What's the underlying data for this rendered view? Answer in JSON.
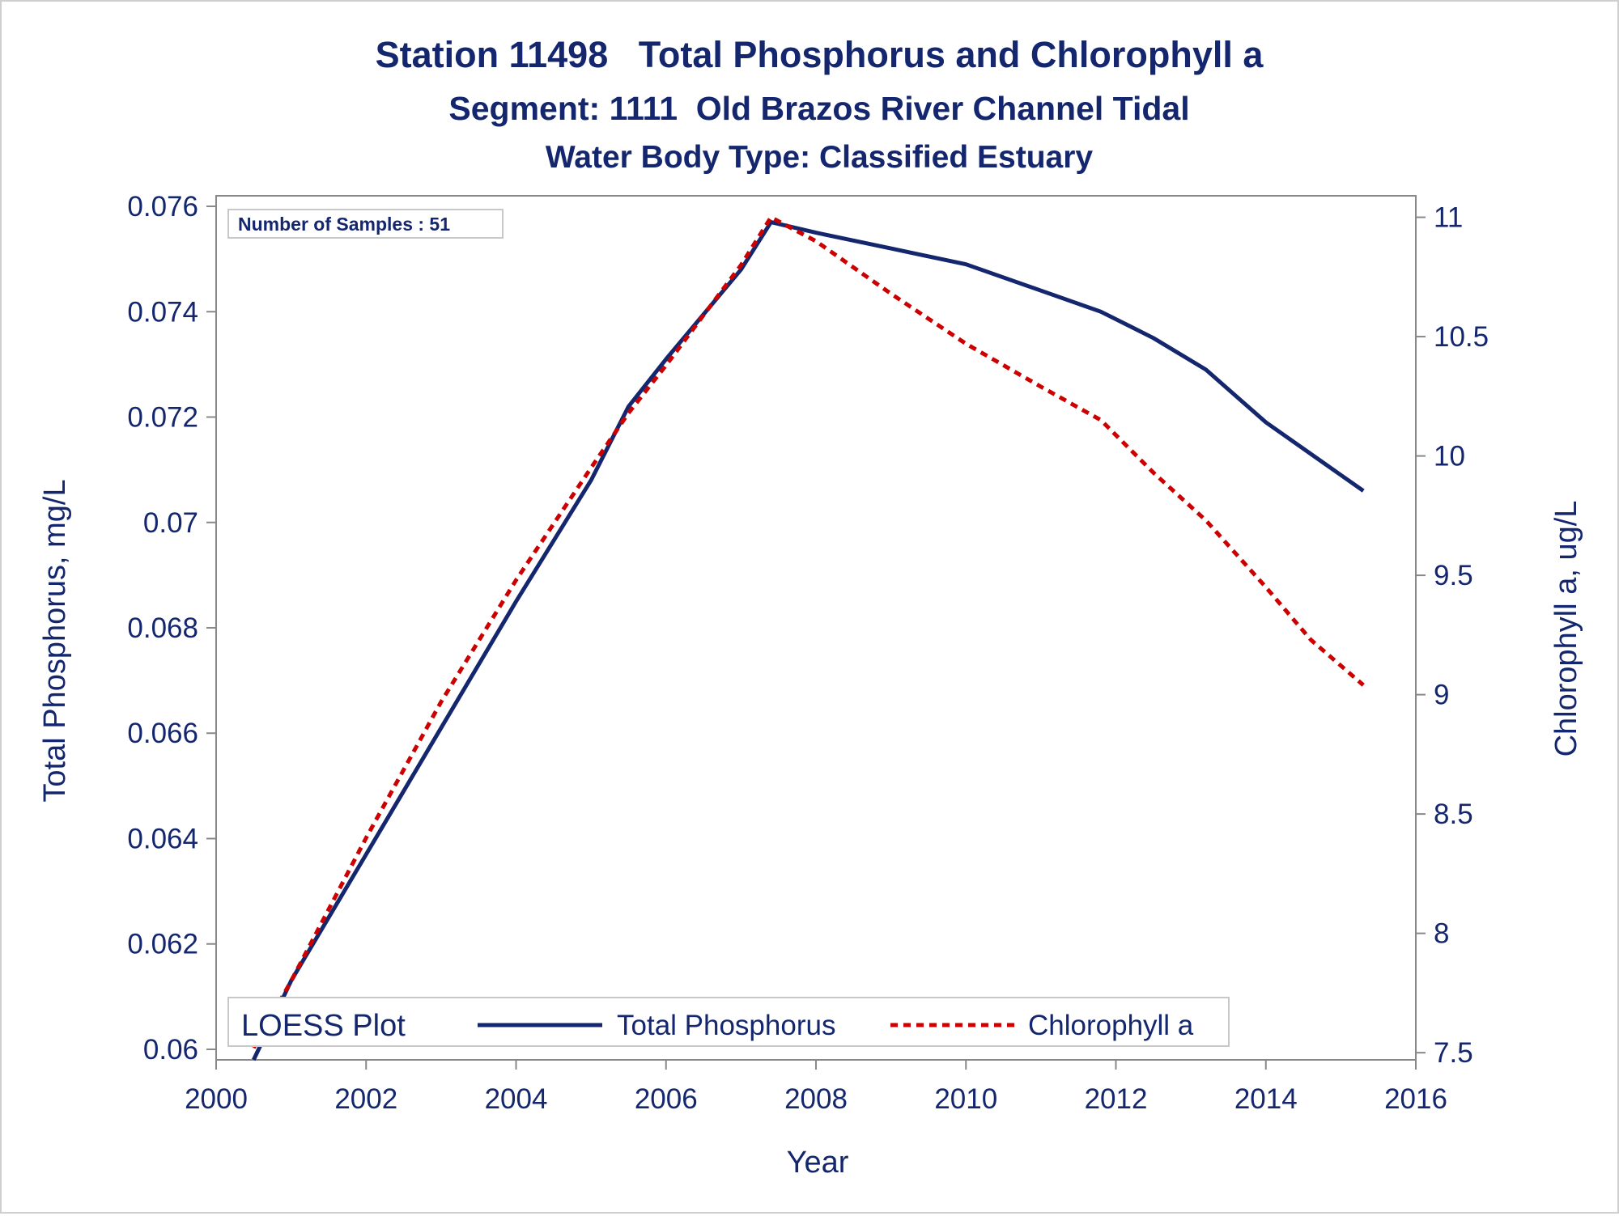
{
  "chart_data": {
    "type": "line",
    "title": "Station 11498   Total Phosphorus and Chlorophyll a",
    "subtitle": "Segment: 1111  Old Brazos River Channel Tidal",
    "subtitle2": "Water Body Type: Classified Estuary",
    "xlabel": "Year",
    "ylabel_left": "Total Phosphorus, mg/L",
    "ylabel_right": "Chlorophyll a, ug/L",
    "xlim": [
      2000,
      2016
    ],
    "ylim_left": [
      0.0598,
      0.0762
    ],
    "ylim_right": [
      7.47,
      11.09
    ],
    "x_ticks": [
      2000,
      2002,
      2004,
      2006,
      2008,
      2010,
      2012,
      2014,
      2016
    ],
    "y_left_ticks": [
      0.06,
      0.062,
      0.064,
      0.066,
      0.068,
      0.07,
      0.072,
      0.074,
      0.076
    ],
    "y_right_ticks": [
      7.5,
      8,
      8.5,
      9,
      9.5,
      10,
      10.5,
      11
    ],
    "inset_label": "Number of Samples : 51",
    "legend": {
      "title": "LOESS Plot",
      "position": "bottom-inside",
      "entries": [
        "Total Phosphorus",
        "Chlorophyll a"
      ]
    },
    "series": [
      {
        "name": "Total Phosphorus",
        "axis": "left",
        "color": "#14276e",
        "style": "solid",
        "x": [
          2000.5,
          2001,
          2002,
          2003,
          2004,
          2005,
          2005.5,
          2006,
          2007,
          2007.4,
          2008,
          2009,
          2010,
          2011,
          2011.8,
          2012.5,
          2013.2,
          2014,
          2014.6,
          2015.3
        ],
        "y": [
          0.0598,
          0.0613,
          0.0637,
          0.0661,
          0.0685,
          0.0708,
          0.0722,
          0.0731,
          0.0748,
          0.0757,
          0.0755,
          0.0752,
          0.0749,
          0.0744,
          0.074,
          0.0735,
          0.0729,
          0.0719,
          0.0713,
          0.0706
        ]
      },
      {
        "name": "Chlorophyll a",
        "axis": "right",
        "color": "#cc0000",
        "style": "dotted",
        "x": [
          2000.5,
          2001,
          2002,
          2003,
          2004,
          2005,
          2005.5,
          2006,
          2007,
          2007.4,
          2008,
          2009,
          2010,
          2011,
          2011.8,
          2012.5,
          2013.2,
          2014,
          2014.6,
          2015.3
        ],
        "y": [
          7.52,
          7.8,
          8.4,
          8.97,
          9.48,
          9.95,
          10.18,
          10.38,
          10.8,
          11.0,
          10.9,
          10.68,
          10.47,
          10.29,
          10.15,
          9.93,
          9.73,
          9.45,
          9.23,
          9.04
        ]
      }
    ]
  }
}
